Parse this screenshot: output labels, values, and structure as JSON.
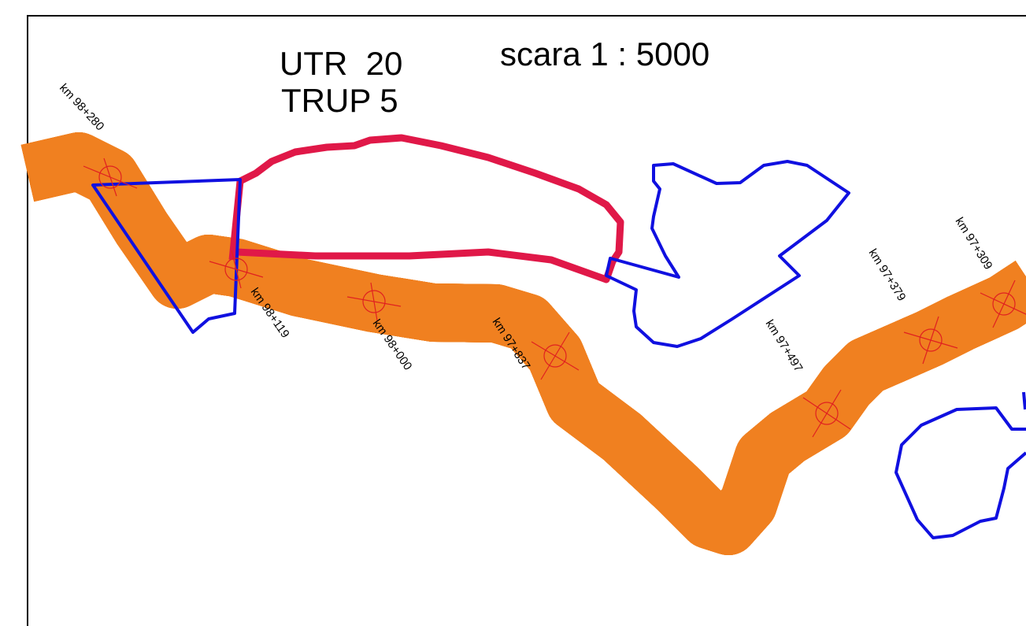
{
  "header": {
    "title_line1": "UTR  20",
    "title_line2": "TRUP 5",
    "scale": "scara 1 : 5000"
  },
  "km_labels": [
    "km 98+280",
    "km 98+119",
    "km 98+000",
    "km 97+837",
    "km 97+497",
    "km 97+379",
    "km 97+309"
  ]
}
